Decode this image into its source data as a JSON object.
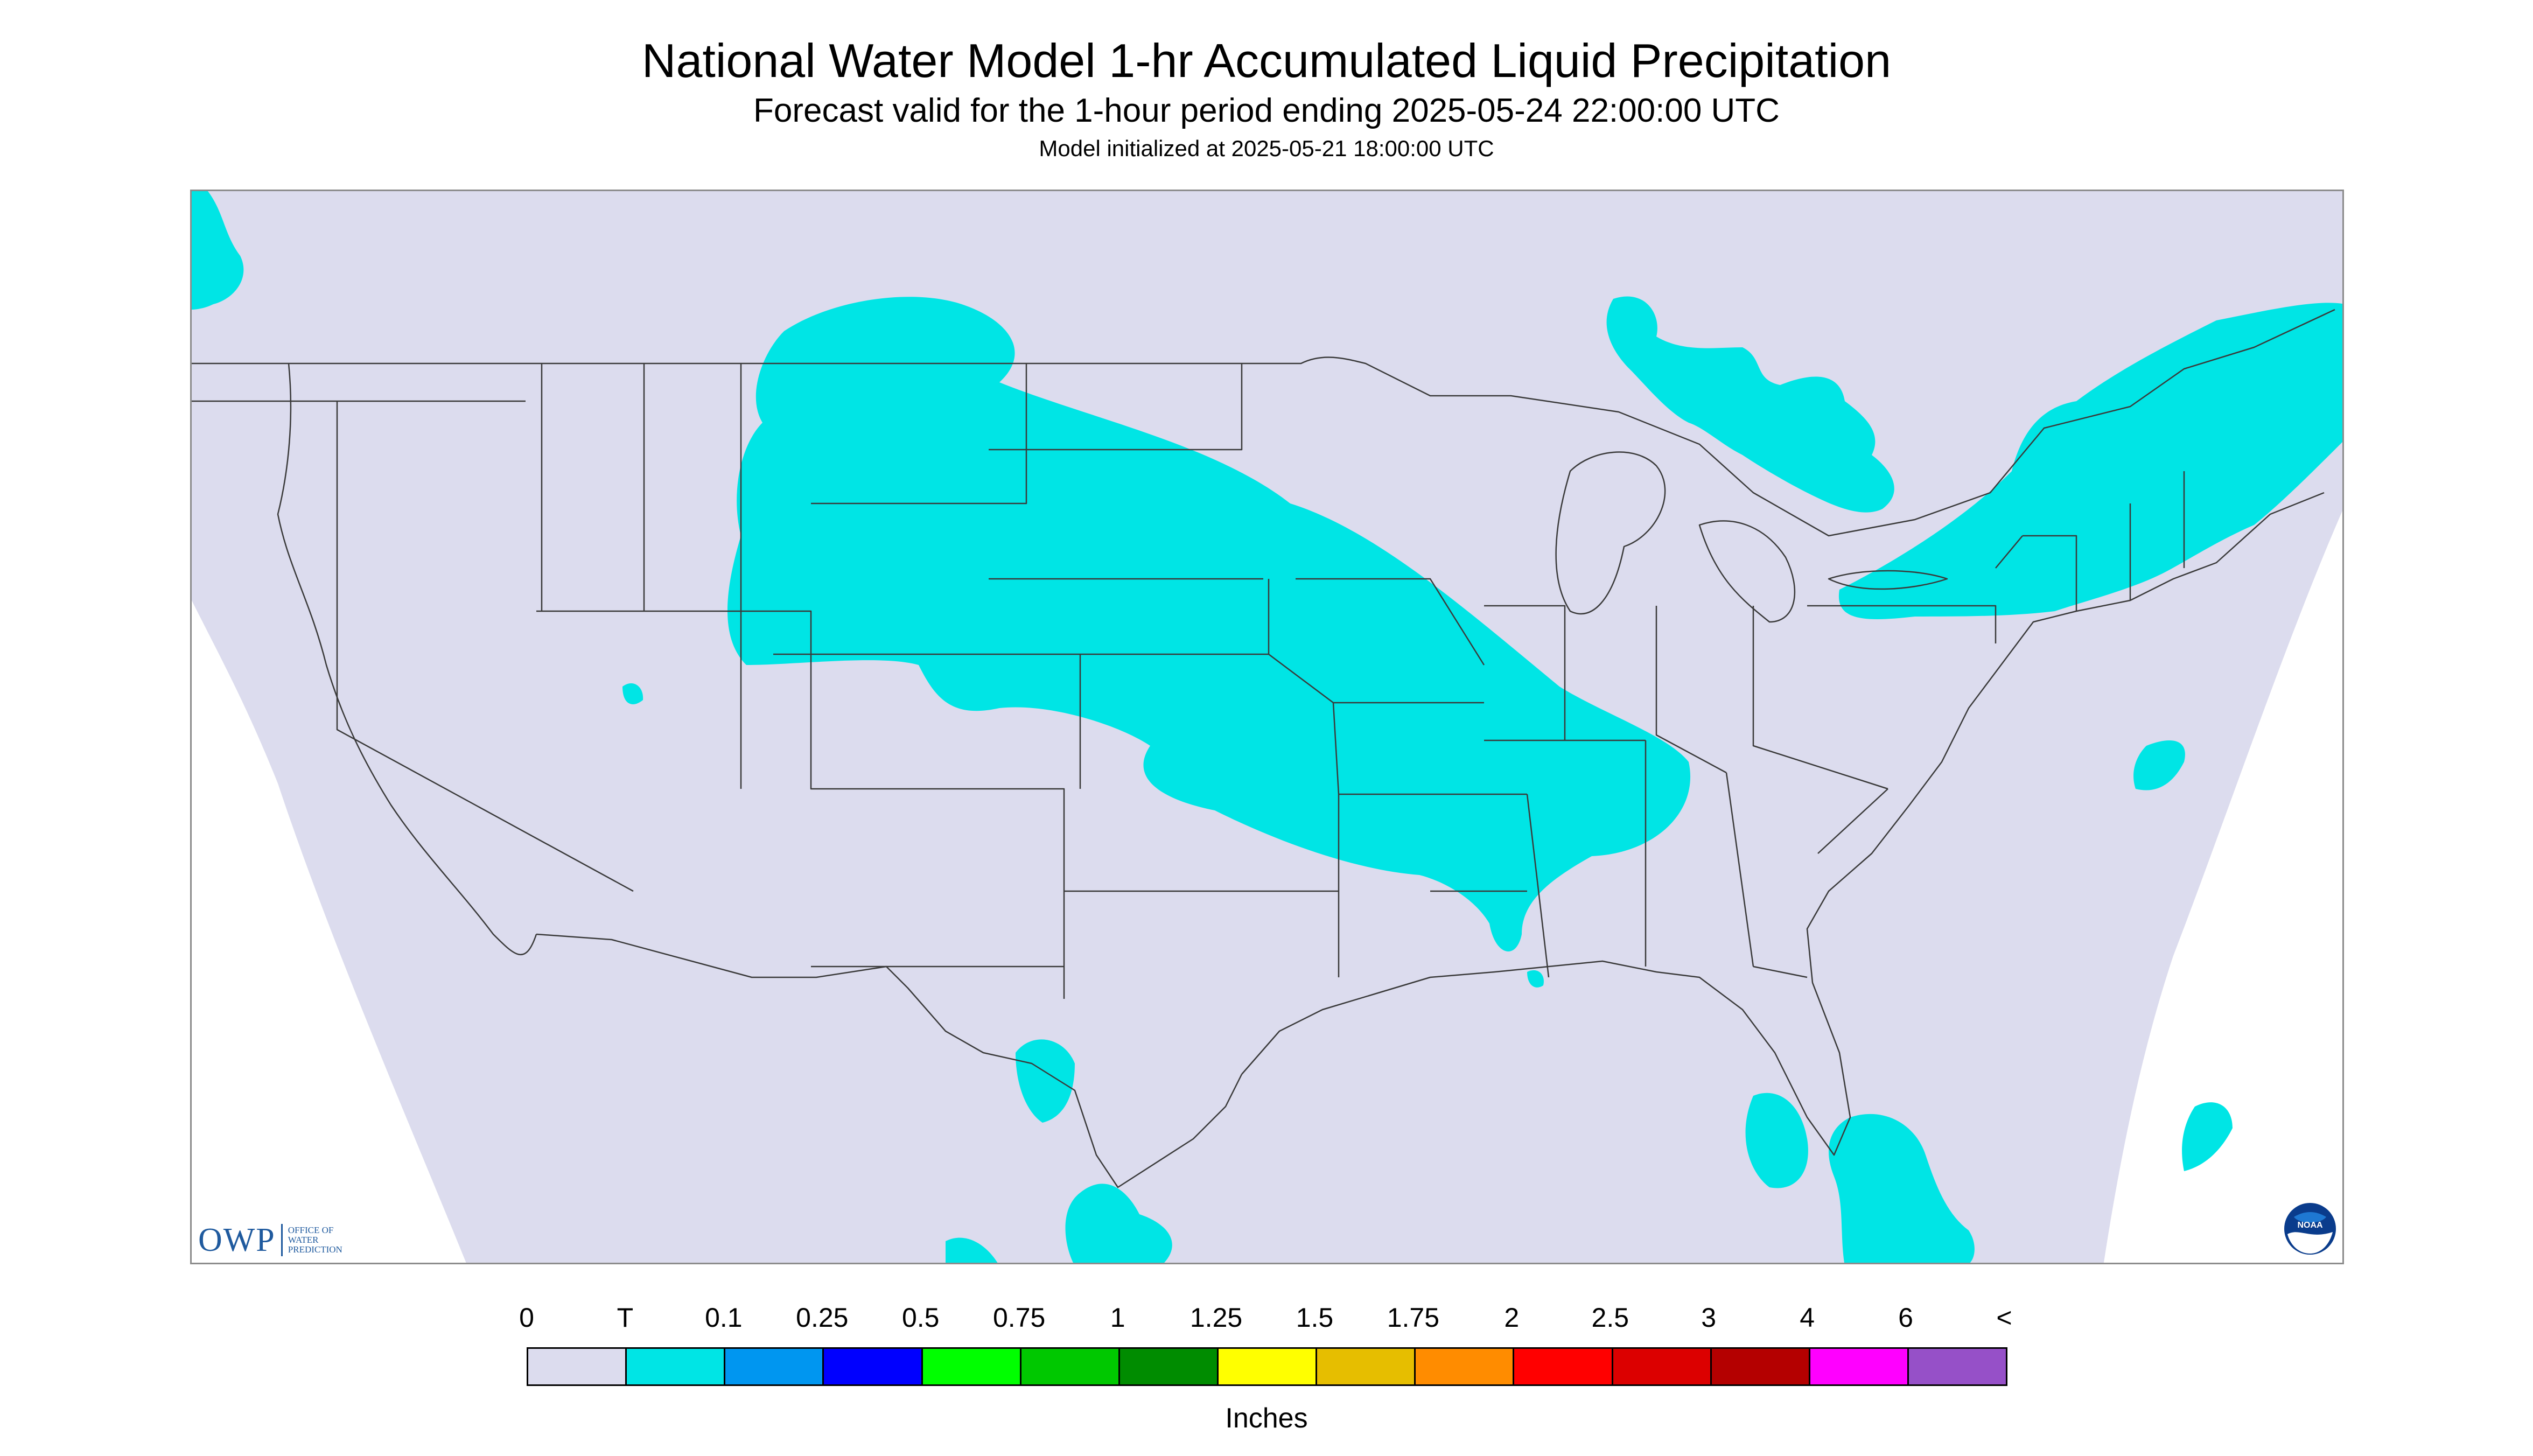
{
  "header": {
    "title": "National Water Model 1-hr Accumulated Liquid Precipitation",
    "subtitle": "Forecast valid for the 1-hour period ending 2025-05-24 22:00:00 UTC",
    "init_note": "Model initialized at 2025-05-21 18:00:00 UTC"
  },
  "map": {
    "background_color": "#dcdcee",
    "outside_domain_color": "#ffffff",
    "boundary_color": "#3a3a3a",
    "precip_color": "#00e5e5",
    "precip_category": "T",
    "region": "Contiguous United States"
  },
  "logos": {
    "owp_letters": "OWP",
    "owp_text": "OFFICE OF WATER PREDICTION",
    "noaa_text": "NOAA"
  },
  "legend": {
    "labels": [
      "0",
      "T",
      "0.1",
      "0.25",
      "0.5",
      "0.75",
      "1",
      "1.25",
      "1.5",
      "1.75",
      "2",
      "2.5",
      "3",
      "4",
      "6",
      "<"
    ],
    "colors": [
      "#dcdcee",
      "#00e5e5",
      "#0096f0",
      "#0000ff",
      "#00ff00",
      "#00c800",
      "#008c00",
      "#ffff00",
      "#e6be00",
      "#ff8c00",
      "#ff0000",
      "#dc0000",
      "#b40000",
      "#ff00ff",
      "#9650c8"
    ],
    "units": "Inches"
  }
}
